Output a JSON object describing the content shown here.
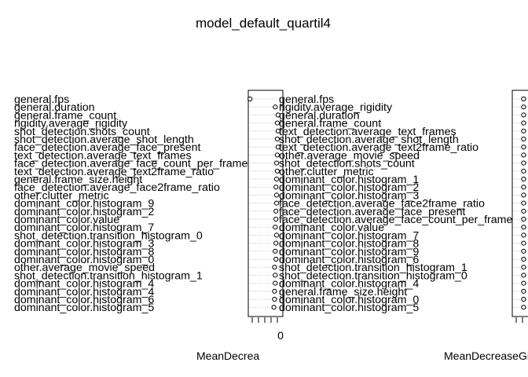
{
  "chart_data": {
    "title": "model_default_quartil4",
    "panels": [
      {
        "type": "scatter",
        "subtype": "dotchart",
        "xlabel": "MeanDecrea",
        "tick_labels": [
          "0"
        ],
        "grid": true,
        "variables": [
          "general.fps",
          "general.duration",
          "general.frame_count",
          "rigidity.average_rigidity",
          "shot_detection.shots_count",
          "shot_detection.average_shot_length",
          "face_detection.average_face_present",
          "text_detection.average_text_frames",
          "face_detection.average_face_count_per_frame",
          "text_detection.average_text2frame_ratio",
          "general.frame_size.height",
          "face_detection.average_face2frame_ratio",
          "other.clutter_metric",
          "dominant_color.histogram_9",
          "dominant_color.histogram_2",
          "dominant_color.value",
          "dominant_color.histogram_7",
          "shot_detection.transition_histogram_0",
          "dominant_color.histogram_3",
          "dominant_color.histogram_8",
          "dominant_color.histogram_0",
          "other.average_movie_speed",
          "shot_detection.transition_histogram_1",
          "dominant_color.histogram_4",
          "dominant_color.histogram_4",
          "dominant_color.histogram_6",
          "dominant_color.histogram_5"
        ],
        "values": [
          0.05,
          0.78,
          0.86,
          0.84,
          0.86,
          0.84,
          0.86,
          0.84,
          0.82,
          0.84,
          0.82,
          0.8,
          0.82,
          0.82,
          0.8,
          0.8,
          0.78,
          0.82,
          0.8,
          0.78,
          0.8,
          0.76,
          0.78,
          0.78,
          0.76,
          0.76,
          0.74
        ]
      },
      {
        "type": "scatter",
        "subtype": "dotchart",
        "xlabel": "MeanDecreaseGini",
        "tick_labels": [],
        "grid": true,
        "variables": [
          "general.fps",
          "rigidity.average_rigidity",
          "general.duration",
          "general.frame_count",
          "text_detection.average_text_frames",
          "shot_detection.average_shot_length",
          "text_detection.average_text2frame_ratio",
          "other.average_movie_speed",
          "shot_detection.shots_count",
          "other.clutter_metric",
          "dominant_color.histogram_1",
          "dominant_color.histogram_2",
          "dominant_color.histogram_3",
          "face_detection.average_face2frame_ratio",
          "face_detection.average_face_present",
          "face_detection.average_face_count_per_frame",
          "dominant_color.value",
          "dominant_color.histogram_7",
          "dominant_color.histogram_8",
          "dominant_color.histogram_9",
          "dominant_color.histogram_6",
          "shot_detection.transition_histogram_1",
          "shot_detection.transition_histogram_0",
          "dominant_color.histogram_4",
          "general.frame_size.height",
          "dominant_color.histogram_0",
          "dominant_color.histogram_5"
        ],
        "values": [
          0.3,
          0.3,
          0.3,
          0.3,
          0.3,
          0.3,
          0.3,
          0.3,
          0.3,
          0.3,
          0.3,
          0.3,
          0.3,
          0.3,
          0.3,
          0.3,
          0.3,
          0.3,
          0.3,
          0.3,
          0.3,
          0.3,
          0.3,
          0.3,
          0.3,
          0.3,
          0.3
        ]
      }
    ]
  }
}
